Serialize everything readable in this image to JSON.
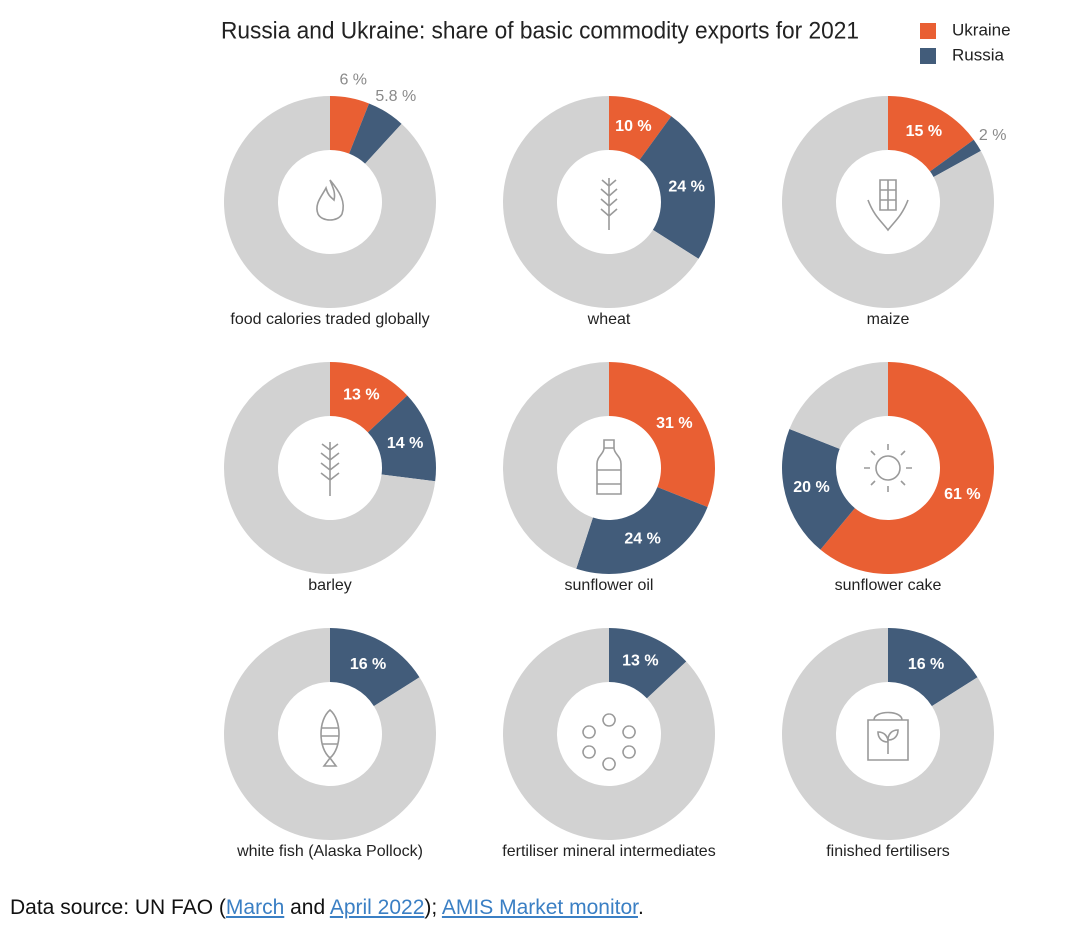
{
  "title": "Russia and Ukraine: share of basic commodity exports for 2021",
  "legend": [
    {
      "name": "Ukraine",
      "color": "#e95f33"
    },
    {
      "name": "Russia",
      "color": "#425c7a"
    }
  ],
  "chart_data": [
    {
      "type": "donut",
      "label": "food calories traded globally",
      "values": [
        6,
        5.8
      ],
      "value_labels": [
        "6 %",
        "5.8 %"
      ]
    },
    {
      "type": "donut",
      "label": "wheat",
      "values": [
        10,
        24
      ],
      "value_labels": [
        "10 %",
        "24 %"
      ]
    },
    {
      "type": "donut",
      "label": "maize",
      "values": [
        15,
        2
      ],
      "value_labels": [
        "15 %",
        "2 %"
      ]
    },
    {
      "type": "donut",
      "label": "barley",
      "values": [
        13,
        14
      ],
      "value_labels": [
        "13 %",
        "14 %"
      ]
    },
    {
      "type": "donut",
      "label": "sunflower oil",
      "values": [
        31,
        24
      ],
      "value_labels": [
        "31 %",
        "24 %"
      ]
    },
    {
      "type": "donut",
      "label": "sunflower cake",
      "values": [
        61,
        20
      ],
      "value_labels": [
        "61 %",
        "20 %"
      ]
    },
    {
      "type": "donut",
      "label": "white fish (Alaska Pollock)",
      "values": [
        null,
        16
      ],
      "value_labels": [
        null,
        "16 %"
      ]
    },
    {
      "type": "donut",
      "label": "fertiliser mineral intermediates",
      "values": [
        null,
        13
      ],
      "value_labels": [
        null,
        "13 %"
      ]
    },
    {
      "type": "donut",
      "label": "finished fertilisers",
      "values": [
        null,
        16
      ],
      "value_labels": [
        null,
        "16 %"
      ]
    }
  ],
  "source": [
    "Data source: UN FAO (",
    "March",
    " and ",
    "April 2022",
    "); ",
    "AMIS Market monitor",
    "."
  ]
}
